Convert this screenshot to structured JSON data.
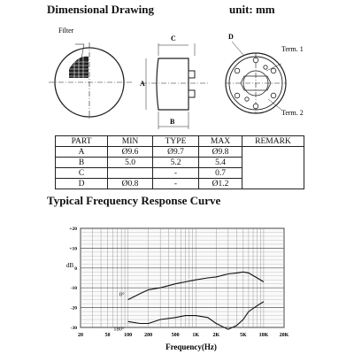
{
  "header": {
    "title": "Dimensional Drawing",
    "unit": "unit: mm"
  },
  "drawing": {
    "filter_label": "Filter",
    "label_a": "A",
    "label_b": "B",
    "label_c": "C",
    "label_d": "D",
    "term1": "Term. 1",
    "term2": "Term. 2"
  },
  "table": {
    "headers": [
      "PART",
      "MIN",
      "TYPE",
      "MAX",
      "REMARK"
    ],
    "rows": [
      [
        "A",
        "Ø9.6",
        "Ø9.7",
        "Ø9.8"
      ],
      [
        "B",
        "5.0",
        "5.2",
        "5.4"
      ],
      [
        "C",
        "",
        "-",
        "0.7"
      ],
      [
        "D",
        "Ø0.8",
        "-",
        "Ø1.2"
      ]
    ],
    "remark": ""
  },
  "freq_title": "Typical Frequency Response Curve",
  "chart_data": {
    "type": "line",
    "title": "",
    "xlabel": "Frequency(Hz)",
    "ylabel": "dB",
    "x_scale": "log",
    "xlim": [
      20,
      20000
    ],
    "ylim": [
      -30,
      20
    ],
    "x_ticks": [
      20,
      50,
      100,
      200,
      500,
      1000,
      2000,
      5000,
      10000,
      20000
    ],
    "x_tick_labels": [
      "20",
      "50",
      "100",
      "200",
      "500",
      "1K",
      "2K",
      "5K",
      "10K",
      "20K"
    ],
    "y_ticks": [
      20,
      10,
      0,
      -10,
      -20,
      -30
    ],
    "y_tick_labels": [
      "+20",
      "+10",
      "0",
      "-10",
      "-20",
      "-30"
    ],
    "grid": true,
    "series": [
      {
        "name": "0°",
        "x": [
          100,
          150,
          200,
          300,
          500,
          700,
          1000,
          1500,
          2000,
          3000,
          4000,
          5000,
          6000,
          8000,
          10000
        ],
        "values": [
          -16,
          -13,
          -11,
          -10,
          -8,
          -7,
          -6,
          -5,
          -4.5,
          -3,
          -2.5,
          -2,
          -2.5,
          -5,
          -7
        ]
      },
      {
        "name": "180°",
        "x": [
          100,
          150,
          200,
          300,
          500,
          700,
          1000,
          1500,
          2000,
          3000,
          4000,
          5000,
          6000,
          8000,
          10000
        ],
        "values": [
          -27,
          -28,
          -28,
          -26,
          -25,
          -24,
          -24,
          -25,
          -28,
          -31,
          -29,
          -26,
          -22,
          -19,
          -17
        ]
      }
    ]
  }
}
